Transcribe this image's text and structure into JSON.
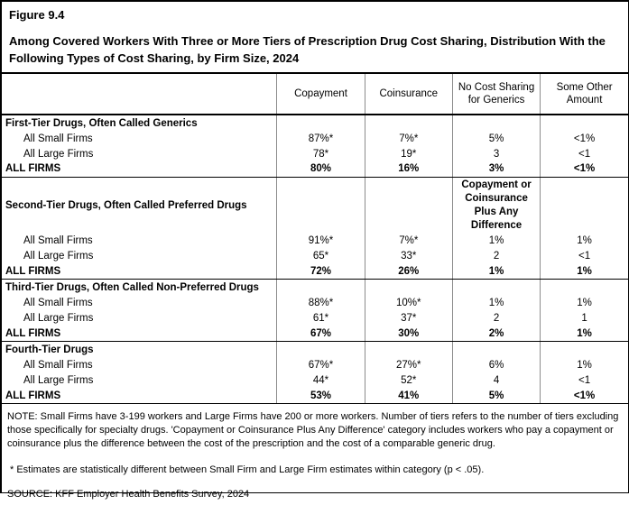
{
  "figure": {
    "label": "Figure 9.4",
    "title": "Among Covered Workers With Three or More Tiers of Prescription Drug Cost Sharing, Distribution With the Following Types of Cost Sharing, by Firm Size, 2024"
  },
  "table": {
    "column_headers": [
      "Copayment",
      "Coinsurance",
      "No Cost Sharing for Generics",
      "Some Other Amount"
    ],
    "sections": [
      {
        "title": "First-Tier Drugs, Often Called Generics",
        "rows": [
          {
            "label": "All Small Firms",
            "values": [
              "87%*",
              "7%*",
              "5%",
              "<1%"
            ]
          },
          {
            "label": "All Large Firms",
            "values": [
              "78*",
              "19*",
              "3",
              "<1"
            ]
          },
          {
            "label": "ALL FIRMS",
            "values": [
              "80%",
              "16%",
              "3%",
              "<1%"
            ]
          }
        ]
      },
      {
        "title": "Second-Tier Drugs, Often Called Preferred Drugs",
        "column3_subheader": "Copayment or Coinsurance Plus Any Difference",
        "rows": [
          {
            "label": "All Small Firms",
            "values": [
              "91%*",
              "7%*",
              "1%",
              "1%"
            ]
          },
          {
            "label": "All Large Firms",
            "values": [
              "65*",
              "33*",
              "2",
              "<1"
            ]
          },
          {
            "label": "ALL FIRMS",
            "values": [
              "72%",
              "26%",
              "1%",
              "1%"
            ]
          }
        ]
      },
      {
        "title": "Third-Tier Drugs, Often Called Non-Preferred Drugs",
        "rows": [
          {
            "label": "All Small Firms",
            "values": [
              "88%*",
              "10%*",
              "1%",
              "1%"
            ]
          },
          {
            "label": "All Large Firms",
            "values": [
              "61*",
              "37*",
              "2",
              "1"
            ]
          },
          {
            "label": "ALL FIRMS",
            "values": [
              "67%",
              "30%",
              "2%",
              "1%"
            ]
          }
        ]
      },
      {
        "title": "Fourth-Tier Drugs",
        "rows": [
          {
            "label": "All Small Firms",
            "values": [
              "67%*",
              "27%*",
              "6%",
              "1%"
            ]
          },
          {
            "label": "All Large Firms",
            "values": [
              "44*",
              "52*",
              "4",
              "<1"
            ]
          },
          {
            "label": "ALL FIRMS",
            "values": [
              "53%",
              "41%",
              "5%",
              "<1%"
            ]
          }
        ]
      }
    ]
  },
  "notes": {
    "note": "NOTE: Small Firms have 3-199 workers and Large Firms have 200 or more workers. Number of tiers refers to the number of tiers excluding those specifically for specialty drugs. 'Copayment or Coinsurance Plus Any Difference' category includes workers who pay a copayment or coinsurance plus the difference between the cost of the prescription and the cost of a comparable generic drug.",
    "footnote": "* Estimates are statistically different between Small Firm and Large Firm estimates within category (p < .05).",
    "source": "SOURCE: KFF Employer Health Benefits Survey, 2024"
  }
}
